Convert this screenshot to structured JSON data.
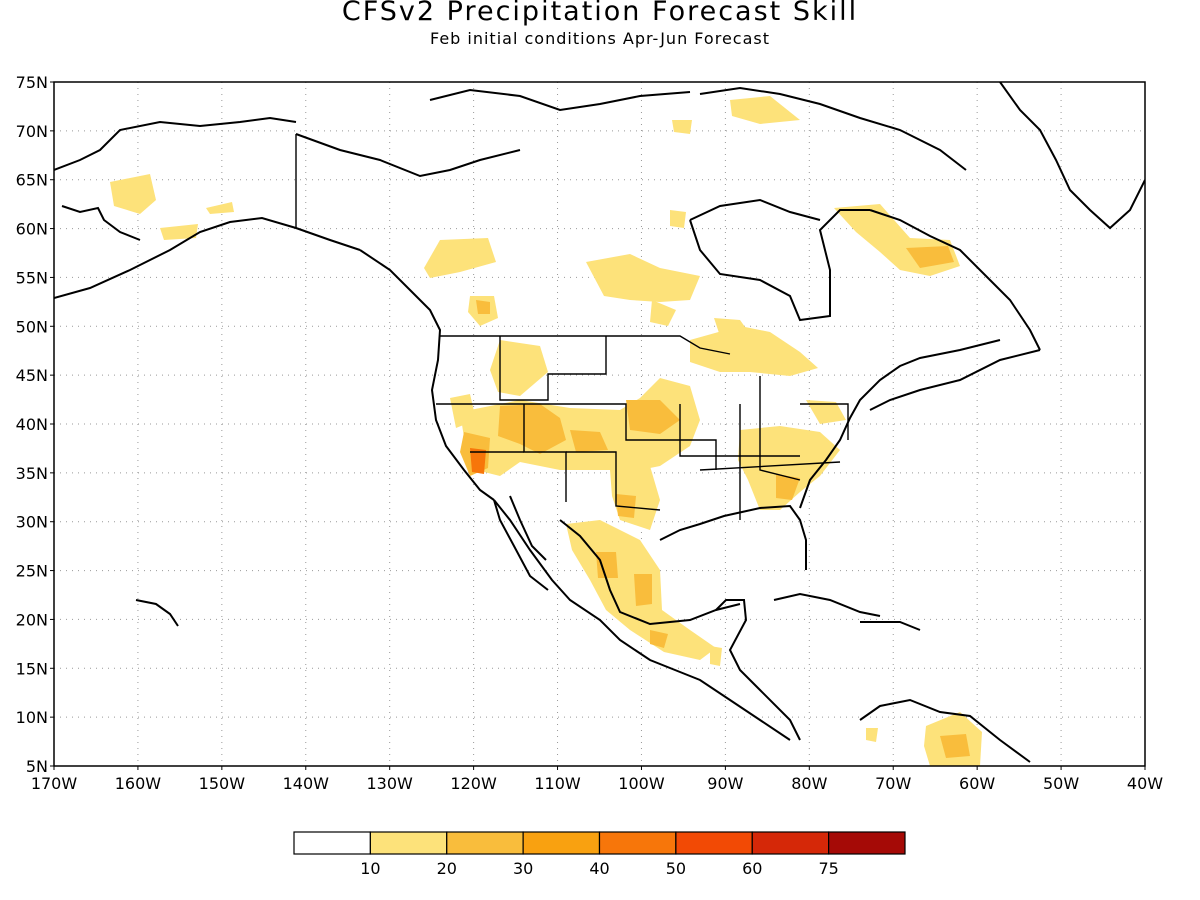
{
  "header": {
    "title": "CFSv2 Precipitation Forecast Skill",
    "subtitle": "Feb initial conditions  Apr-Jun Forecast"
  },
  "map": {
    "lon_range": [
      -170,
      -40
    ],
    "lat_range": [
      5,
      75
    ],
    "lat_labels": [
      "75N",
      "70N",
      "65N",
      "60N",
      "55N",
      "50N",
      "45N",
      "40N",
      "35N",
      "30N",
      "25N",
      "20N",
      "15N",
      "10N",
      "5N"
    ],
    "lon_labels": [
      "170W",
      "160W",
      "150W",
      "140W",
      "130W",
      "120W",
      "110W",
      "100W",
      "90W",
      "80W",
      "70W",
      "60W",
      "50W",
      "40W"
    ]
  },
  "colorbar": {
    "labels": [
      "10",
      "20",
      "30",
      "40",
      "50",
      "60",
      "75"
    ],
    "colors": [
      "#ffffff",
      "#fde27a",
      "#f9bd3c",
      "#f9a110",
      "#f7760a",
      "#f24a05",
      "#d52808",
      "#a50a06"
    ]
  }
}
